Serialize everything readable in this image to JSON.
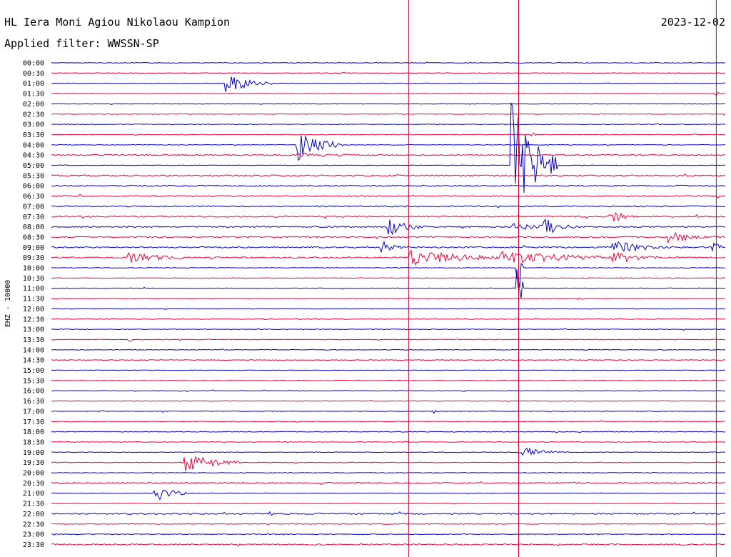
{
  "header": {
    "station": "HL Iera Moni Agiou Nikolaou Kampion",
    "filter": "Applied filter: WWSSN-SP",
    "date": "2023-12-02"
  },
  "channel_label": "EHZ - 10000",
  "colors": {
    "trace_a": "#0000cc",
    "trace_b": "#ee0033",
    "marker": "#cc0033",
    "text": "#000000"
  },
  "chart_data": {
    "type": "line",
    "title": "",
    "xlabel": "",
    "ylabel": "EHZ - 10000",
    "rows": [
      "00:00",
      "00:30",
      "01:00",
      "01:30",
      "02:00",
      "02:30",
      "03:00",
      "03:30",
      "04:00",
      "04:30",
      "05:00",
      "05:30",
      "06:00",
      "06:30",
      "07:00",
      "07:30",
      "08:00",
      "08:30",
      "09:00",
      "09:30",
      "10:00",
      "10:30",
      "11:00",
      "11:30",
      "12:00",
      "12:30",
      "13:00",
      "13:30",
      "14:00",
      "14:30",
      "15:00",
      "15:30",
      "16:00",
      "16:30",
      "17:00",
      "17:30",
      "18:00",
      "18:30",
      "19:00",
      "19:30",
      "20:00",
      "20:30",
      "21:00",
      "21:30",
      "22:00",
      "22:30",
      "23:00",
      "23:30"
    ],
    "minutes_per_row": 30,
    "grid": false,
    "noise": [
      1,
      1,
      1,
      1,
      1,
      1,
      1,
      1,
      1,
      2,
      1,
      2,
      2,
      2,
      2,
      2,
      2,
      2,
      2,
      2,
      1,
      1,
      1,
      1,
      1,
      1,
      1,
      1,
      1,
      1,
      1,
      1,
      1,
      1,
      1,
      1,
      1,
      1,
      1,
      1,
      1,
      2,
      1,
      1,
      2,
      1,
      1,
      2
    ],
    "events": [
      {
        "row": 2,
        "minute": 7.8,
        "amp": 14,
        "dur": 2.0
      },
      {
        "row": 8,
        "minute": 11.0,
        "amp": 22,
        "dur": 2.0
      },
      {
        "row": 9,
        "minute": 11.0,
        "amp": 3,
        "dur": 6.0
      },
      {
        "row": 10,
        "minute": 20.5,
        "amp": 95,
        "dur": 2.0
      },
      {
        "row": 16,
        "minute": 20.5,
        "amp": 5,
        "dur": 5.0
      },
      {
        "row": 15,
        "minute": 25.0,
        "amp": 9,
        "dur": 1.0
      },
      {
        "row": 16,
        "minute": 22.0,
        "amp": 12,
        "dur": 1.5
      },
      {
        "row": 16,
        "minute": 15.0,
        "amp": 14,
        "dur": 1.8
      },
      {
        "row": 18,
        "minute": 14.7,
        "amp": 10,
        "dur": 1.0
      },
      {
        "row": 18,
        "minute": 25.0,
        "amp": 9,
        "dur": 3.5
      },
      {
        "row": 19,
        "minute": 16.0,
        "amp": 12,
        "dur": 5.0
      },
      {
        "row": 19,
        "minute": 20.0,
        "amp": 10,
        "dur": 7.0
      },
      {
        "row": 19,
        "minute": 25.0,
        "amp": 12,
        "dur": 2.0
      },
      {
        "row": 19,
        "minute": 3.5,
        "amp": 8,
        "dur": 3.0
      },
      {
        "row": 17,
        "minute": 27.5,
        "amp": 8,
        "dur": 2.5
      },
      {
        "row": 18,
        "minute": 29.5,
        "amp": 6,
        "dur": 1.0
      },
      {
        "row": 20,
        "minute": 20.8,
        "amp": 40,
        "dur": 0.2
      },
      {
        "row": 22,
        "minute": 20.8,
        "amp": 40,
        "dur": 0.2
      },
      {
        "row": 39,
        "minute": 5.9,
        "amp": 14,
        "dur": 2.5
      },
      {
        "row": 42,
        "minute": 4.6,
        "amp": 14,
        "dur": 1.5
      },
      {
        "row": 38,
        "minute": 21.0,
        "amp": 8,
        "dur": 2.0
      },
      {
        "row": 44,
        "minute": 9.7,
        "amp": 4,
        "dur": 0.3
      },
      {
        "row": 3,
        "minute": 29.6,
        "amp": 4,
        "dur": 0.3
      },
      {
        "row": 7,
        "minute": 21.4,
        "amp": 4,
        "dur": 0.3
      },
      {
        "row": 15,
        "minute": 24.9,
        "amp": 5,
        "dur": 0.5
      },
      {
        "row": 23,
        "minute": 23.5,
        "amp": 4,
        "dur": 0.3
      },
      {
        "row": 27,
        "minute": 3.5,
        "amp": 3,
        "dur": 0.3
      },
      {
        "row": 34,
        "minute": 17.0,
        "amp": 3,
        "dur": 0.5
      }
    ],
    "vlines_minutes": [
      15.9,
      20.8,
      29.6
    ]
  }
}
